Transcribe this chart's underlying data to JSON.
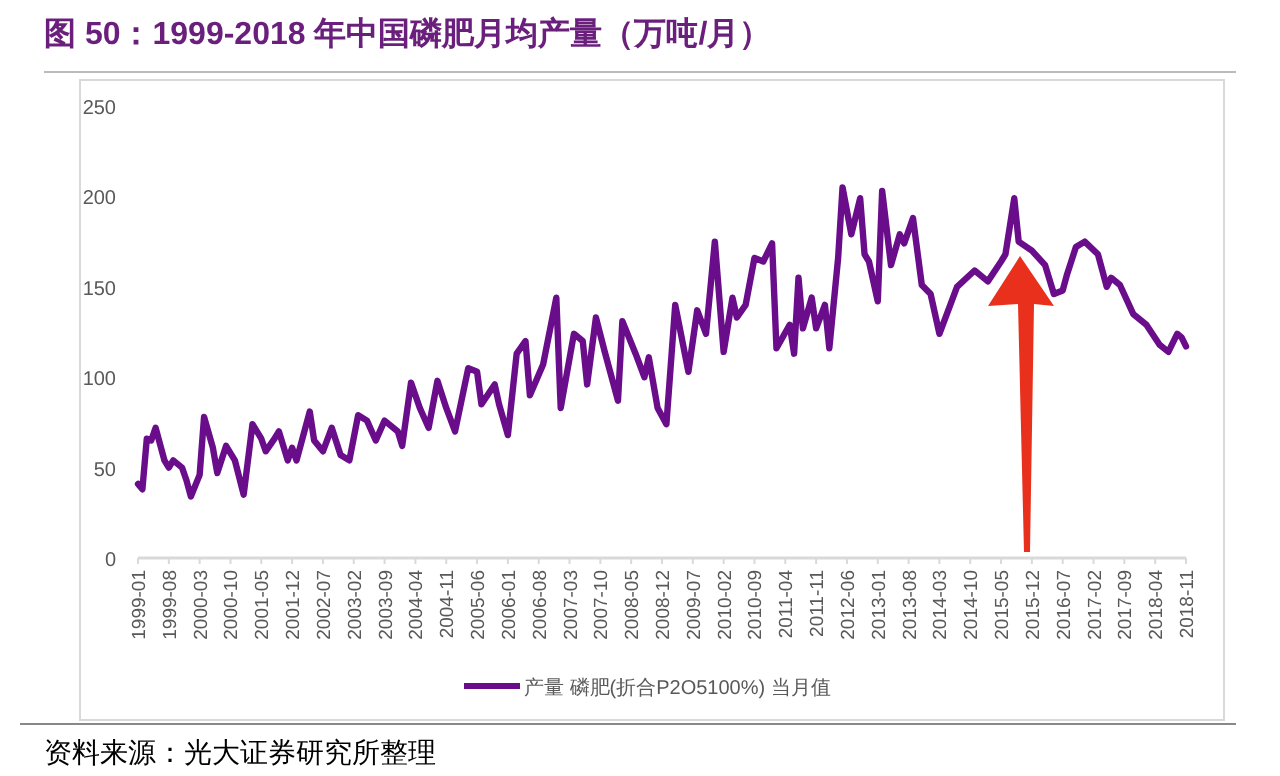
{
  "chart_data": {
    "type": "line",
    "title": "图 50：1999-2018 年中国磷肥月均产量（万吨/月）",
    "annotations": [
      "资料来源：光大证券研究所整理"
    ],
    "legend": "bottom",
    "grid": false,
    "marker": "none",
    "line_style": "solid",
    "ylim": [
      0,
      250
    ],
    "yticks": [
      0,
      50,
      100,
      150,
      200,
      250
    ],
    "xlim": [
      "1999-01",
      "2018-11"
    ],
    "xticks": [
      "1999-01",
      "1999-08",
      "2000-03",
      "2000-10",
      "2001-05",
      "2001-12",
      "2002-07",
      "2003-02",
      "2003-09",
      "2004-04",
      "2004-11",
      "2005-06",
      "2006-01",
      "2006-08",
      "2007-03",
      "2007-10",
      "2008-05",
      "2008-12",
      "2009-07",
      "2010-02",
      "2010-09",
      "2011-04",
      "2011-11",
      "2012-06",
      "2013-01",
      "2013-08",
      "2014-03",
      "2014-10",
      "2015-05",
      "2015-12",
      "2016-07",
      "2017-02",
      "2017-09",
      "2018-04",
      "2018-11"
    ],
    "series": [
      {
        "name": "产量 磷肥(折合P2O5100%) 当月值",
        "color": "#6a0d8a",
        "x": [
          "1999-01",
          "1999-02",
          "1999-03",
          "1999-04",
          "1999-05",
          "1999-07",
          "1999-08",
          "1999-09",
          "1999-11",
          "1999-12",
          "2000-01",
          "2000-03",
          "2000-04",
          "2000-06",
          "2000-07",
          "2000-09",
          "2000-11",
          "2001-01",
          "2001-03",
          "2001-05",
          "2001-06",
          "2001-08",
          "2001-09",
          "2001-11",
          "2001-12",
          "2002-01",
          "2002-04",
          "2002-05",
          "2002-07",
          "2002-09",
          "2002-11",
          "2003-01",
          "2003-03",
          "2003-05",
          "2003-07",
          "2003-09",
          "2003-12",
          "2004-01",
          "2004-03",
          "2004-05",
          "2004-07",
          "2004-09",
          "2004-11",
          "2005-01",
          "2005-04",
          "2005-06",
          "2005-07",
          "2005-10",
          "2005-11",
          "2006-01",
          "2006-03",
          "2006-05",
          "2006-06",
          "2006-09",
          "2006-12",
          "2007-01",
          "2007-04",
          "2007-06",
          "2007-07",
          "2007-09",
          "2007-11",
          "2008-02",
          "2008-03",
          "2008-06",
          "2008-08",
          "2008-09",
          "2008-11",
          "2009-01",
          "2009-03",
          "2009-06",
          "2009-08",
          "2009-10",
          "2009-12",
          "2010-02",
          "2010-04",
          "2010-05",
          "2010-07",
          "2010-09",
          "2010-11",
          "2011-01",
          "2011-02",
          "2011-05",
          "2011-06",
          "2011-07",
          "2011-08",
          "2011-10",
          "2011-11",
          "2012-01",
          "2012-02",
          "2012-04",
          "2012-05",
          "2012-07",
          "2012-09",
          "2012-10",
          "2012-11",
          "2013-01",
          "2013-02",
          "2013-04",
          "2013-06",
          "2013-07",
          "2013-09",
          "2013-11",
          "2014-01",
          "2014-03",
          "2014-05",
          "2014-07",
          "2014-11",
          "2015-02",
          "2015-05",
          "2015-06",
          "2015-08",
          "2015-09",
          "2015-12",
          "2016-03",
          "2016-05",
          "2016-07",
          "2016-08",
          "2016-10",
          "2016-12",
          "2017-03",
          "2017-05",
          "2017-06",
          "2017-08",
          "2017-11",
          "2018-02",
          "2018-05",
          "2018-07",
          "2018-09",
          "2018-10",
          "2018-11"
        ],
        "values": [
          41,
          38,
          66,
          65,
          72,
          54,
          50,
          54,
          50,
          43,
          34,
          46,
          78,
          61,
          47,
          62,
          54,
          35,
          74,
          66,
          59,
          66,
          70,
          54,
          61,
          54,
          81,
          65,
          59,
          72,
          57,
          54,
          79,
          76,
          65,
          76,
          70,
          62,
          97,
          83,
          72,
          98,
          83,
          70,
          105,
          103,
          85,
          96,
          85,
          68,
          113,
          120,
          90,
          107,
          144,
          83,
          124,
          120,
          96,
          133,
          114,
          87,
          131,
          113,
          100,
          111,
          83,
          74,
          140,
          103,
          137,
          124,
          175,
          114,
          144,
          133,
          140,
          166,
          164,
          174,
          116,
          129,
          113,
          155,
          127,
          144,
          127,
          140,
          116,
          166,
          205,
          179,
          199,
          168,
          164,
          142,
          203,
          162,
          179,
          174,
          188,
          151,
          146,
          124,
          137,
          150,
          159,
          153,
          164,
          168,
          199,
          175,
          170,
          162,
          146,
          148,
          157,
          172,
          175,
          168,
          150,
          155,
          151,
          135,
          129,
          118,
          114,
          124,
          122,
          117
        ]
      }
    ]
  }
}
